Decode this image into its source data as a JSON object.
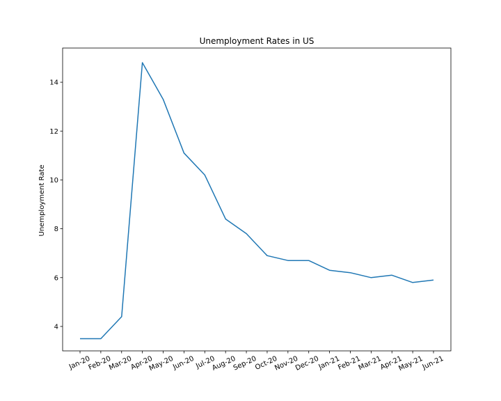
{
  "chart_data": {
    "type": "line",
    "title": "Unemployment Rates in US",
    "xlabel": "",
    "ylabel": "Unemployment Rate",
    "categories": [
      "Jan-20",
      "Feb-20",
      "Mar-20",
      "Apr-20",
      "May-20",
      "Jun-20",
      "Jul-20",
      "Aug-20",
      "Sep-20",
      "Oct-20",
      "Nov-20",
      "Dec-20",
      "Jan-21",
      "Feb-21",
      "Mar-21",
      "Apr-21",
      "May-21",
      "Jun-21"
    ],
    "series": [
      {
        "color": "#1f77b4",
        "values": [
          3.5,
          3.5,
          4.4,
          14.8,
          13.3,
          11.1,
          10.2,
          8.4,
          7.8,
          6.9,
          6.7,
          6.7,
          6.3,
          6.2,
          6.0,
          6.1,
          5.8,
          5.9
        ]
      }
    ],
    "yticks": [
      4,
      6,
      8,
      10,
      12,
      14
    ],
    "ylim": [
      3.0,
      15.4
    ],
    "grid": false,
    "legend": "none"
  }
}
